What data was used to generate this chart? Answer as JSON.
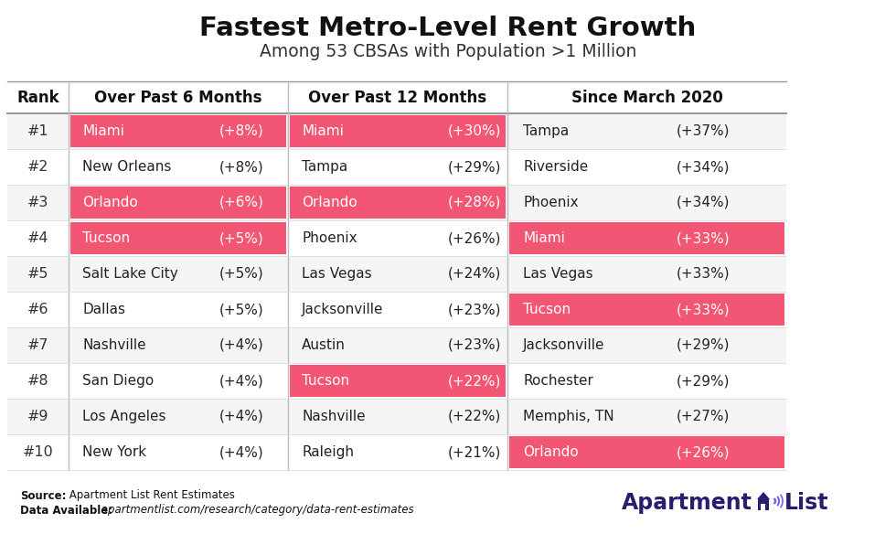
{
  "title": "Fastest Metro-Level Rent Growth",
  "subtitle": "Among 53 CBSAs with Population >1 Million",
  "ranks": [
    "#1",
    "#2",
    "#3",
    "#4",
    "#5",
    "#6",
    "#7",
    "#8",
    "#9",
    "#10"
  ],
  "col1_header": "Over Past 6 Months",
  "col2_header": "Over Past 12 Months",
  "col3_header": "Since March 2020",
  "col1_cities": [
    "Miami",
    "New Orleans",
    "Orlando",
    "Tucson",
    "Salt Lake City",
    "Dallas",
    "Nashville",
    "San Diego",
    "Los Angeles",
    "New York"
  ],
  "col1_values": [
    "(+8%)",
    "(+8%)",
    "(+6%)",
    "(+5%)",
    "(+5%)",
    "(+5%)",
    "(+4%)",
    "(+4%)",
    "(+4%)",
    "(+4%)"
  ],
  "col1_highlight": [
    true,
    false,
    true,
    true,
    false,
    false,
    false,
    false,
    false,
    false
  ],
  "col2_cities": [
    "Miami",
    "Tampa",
    "Orlando",
    "Phoenix",
    "Las Vegas",
    "Jacksonville",
    "Austin",
    "Tucson",
    "Nashville",
    "Raleigh"
  ],
  "col2_values": [
    "(+30%)",
    "(+29%)",
    "(+28%)",
    "(+26%)",
    "(+24%)",
    "(+23%)",
    "(+23%)",
    "(+22%)",
    "(+22%)",
    "(+21%)"
  ],
  "col2_highlight": [
    true,
    false,
    true,
    false,
    false,
    false,
    false,
    true,
    false,
    false
  ],
  "col3_cities": [
    "Tampa",
    "Riverside",
    "Phoenix",
    "Miami",
    "Las Vegas",
    "Tucson",
    "Jacksonville",
    "Rochester",
    "Memphis, TN",
    "Orlando"
  ],
  "col3_values": [
    "(+37%)",
    "(+34%)",
    "(+34%)",
    "(+33%)",
    "(+33%)",
    "(+33%)",
    "(+29%)",
    "(+29%)",
    "(+27%)",
    "(+26%)"
  ],
  "col3_highlight": [
    false,
    false,
    false,
    true,
    false,
    true,
    false,
    false,
    false,
    true
  ],
  "highlight_color": "#F25674",
  "highlight_text_color": "#ffffff",
  "normal_text_color": "#222222",
  "rank_text_color": "#333333",
  "header_text_color": "#111111",
  "bg_color": "#ffffff",
  "row_even_color": "#f5f5f5",
  "row_odd_color": "#ffffff",
  "divider_color": "#cccccc",
  "source_bold": "Source:",
  "source_rest": " Apartment List Rent Estimates",
  "data_bold": "Data Available:",
  "data_url": " apartmentlist.com/research/category/data-rent-estimates",
  "logo_color": "#2d1b6e",
  "logo_icon_color1": "#7b5cf0",
  "logo_icon_color2": "#2d1b6e"
}
